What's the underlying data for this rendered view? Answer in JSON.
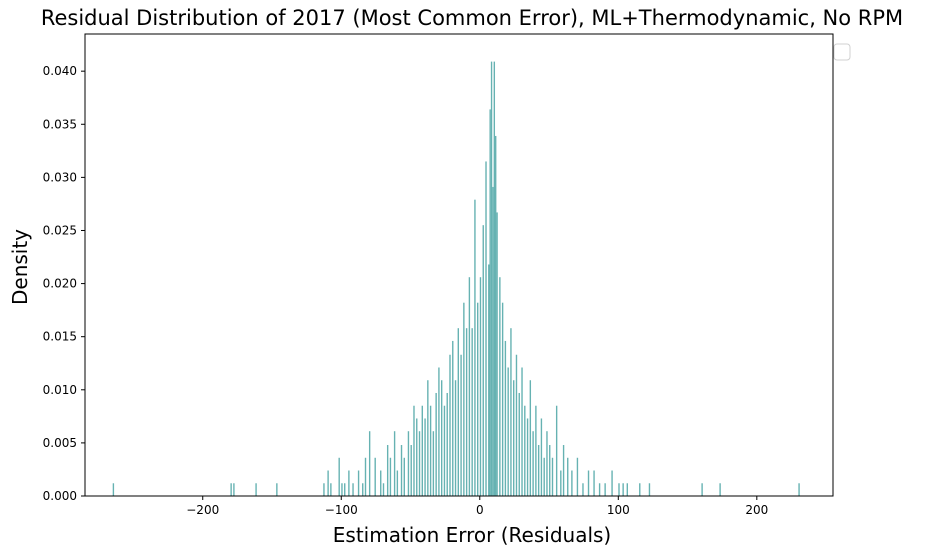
{
  "chart_data": {
    "type": "bar",
    "title": "Residual Distribution of 2017 (Most Common Error), ML+Thermodynamic, No RPM",
    "xlabel": "Estimation Error (Residuals)",
    "ylabel": "Density",
    "xlim": [
      -285,
      255
    ],
    "ylim": [
      0,
      0.0435
    ],
    "xticks": [
      -200,
      -100,
      0,
      100,
      200
    ],
    "yticks": [
      0.0,
      0.005,
      0.01,
      0.015,
      0.02,
      0.025,
      0.03,
      0.035,
      0.04
    ],
    "ytick_labels": [
      "0.000",
      "0.005",
      "0.010",
      "0.015",
      "0.020",
      "0.025",
      "0.030",
      "0.035",
      "0.040"
    ],
    "bar_color": "#66b2b2",
    "grid": false,
    "legend": {
      "position": "top-right",
      "entries": []
    },
    "bin_width": 1,
    "bins": {
      "x": [
        -265,
        -180,
        -178,
        -162,
        -147,
        -113,
        -110,
        -108,
        -102,
        -100,
        -98,
        -95,
        -92,
        -88,
        -85,
        -83,
        -80,
        -76,
        -72,
        -70,
        -67,
        -65,
        -62,
        -60,
        -57,
        -55,
        -52,
        -50,
        -48,
        -46,
        -44,
        -42,
        -40,
        -38,
        -36,
        -34,
        -32,
        -30,
        -28,
        -26,
        -24,
        -22,
        -20,
        -18,
        -16,
        -14,
        -12,
        -10,
        -8,
        -6,
        -4,
        -2,
        0,
        2,
        4,
        6,
        7,
        8,
        9,
        10,
        11,
        12,
        14,
        16,
        18,
        20,
        22,
        24,
        26,
        28,
        30,
        32,
        34,
        36,
        38,
        40,
        42,
        44,
        46,
        48,
        50,
        52,
        55,
        58,
        60,
        63,
        66,
        70,
        74,
        78,
        82,
        86,
        90,
        95,
        100,
        103,
        106,
        115,
        122,
        160,
        173,
        230
      ],
      "density": [
        0.0012,
        0.0012,
        0.0012,
        0.0012,
        0.0012,
        0.0012,
        0.0024,
        0.0012,
        0.0036,
        0.0012,
        0.0012,
        0.0024,
        0.0012,
        0.0024,
        0.0012,
        0.0036,
        0.0061,
        0.0036,
        0.0024,
        0.0012,
        0.0048,
        0.0036,
        0.0061,
        0.0024,
        0.0048,
        0.0036,
        0.0061,
        0.0048,
        0.0085,
        0.0073,
        0.0061,
        0.0085,
        0.0073,
        0.0109,
        0.0085,
        0.0061,
        0.0097,
        0.0121,
        0.0109,
        0.0085,
        0.0097,
        0.0133,
        0.0146,
        0.0109,
        0.0158,
        0.0133,
        0.0182,
        0.0158,
        0.0206,
        0.0158,
        0.0279,
        0.0182,
        0.0206,
        0.0255,
        0.0315,
        0.0218,
        0.0364,
        0.0409,
        0.0291,
        0.0409,
        0.0339,
        0.0267,
        0.0206,
        0.0182,
        0.0146,
        0.0121,
        0.0158,
        0.0109,
        0.0133,
        0.0097,
        0.0121,
        0.0085,
        0.0073,
        0.0109,
        0.0061,
        0.0085,
        0.0048,
        0.0073,
        0.0036,
        0.0061,
        0.0048,
        0.0036,
        0.0085,
        0.0024,
        0.0048,
        0.0036,
        0.0024,
        0.0036,
        0.0012,
        0.0024,
        0.0024,
        0.0012,
        0.0012,
        0.0024,
        0.0012,
        0.0012,
        0.0012,
        0.0012,
        0.0012,
        0.0012,
        0.0012,
        0.0012
      ]
    }
  }
}
